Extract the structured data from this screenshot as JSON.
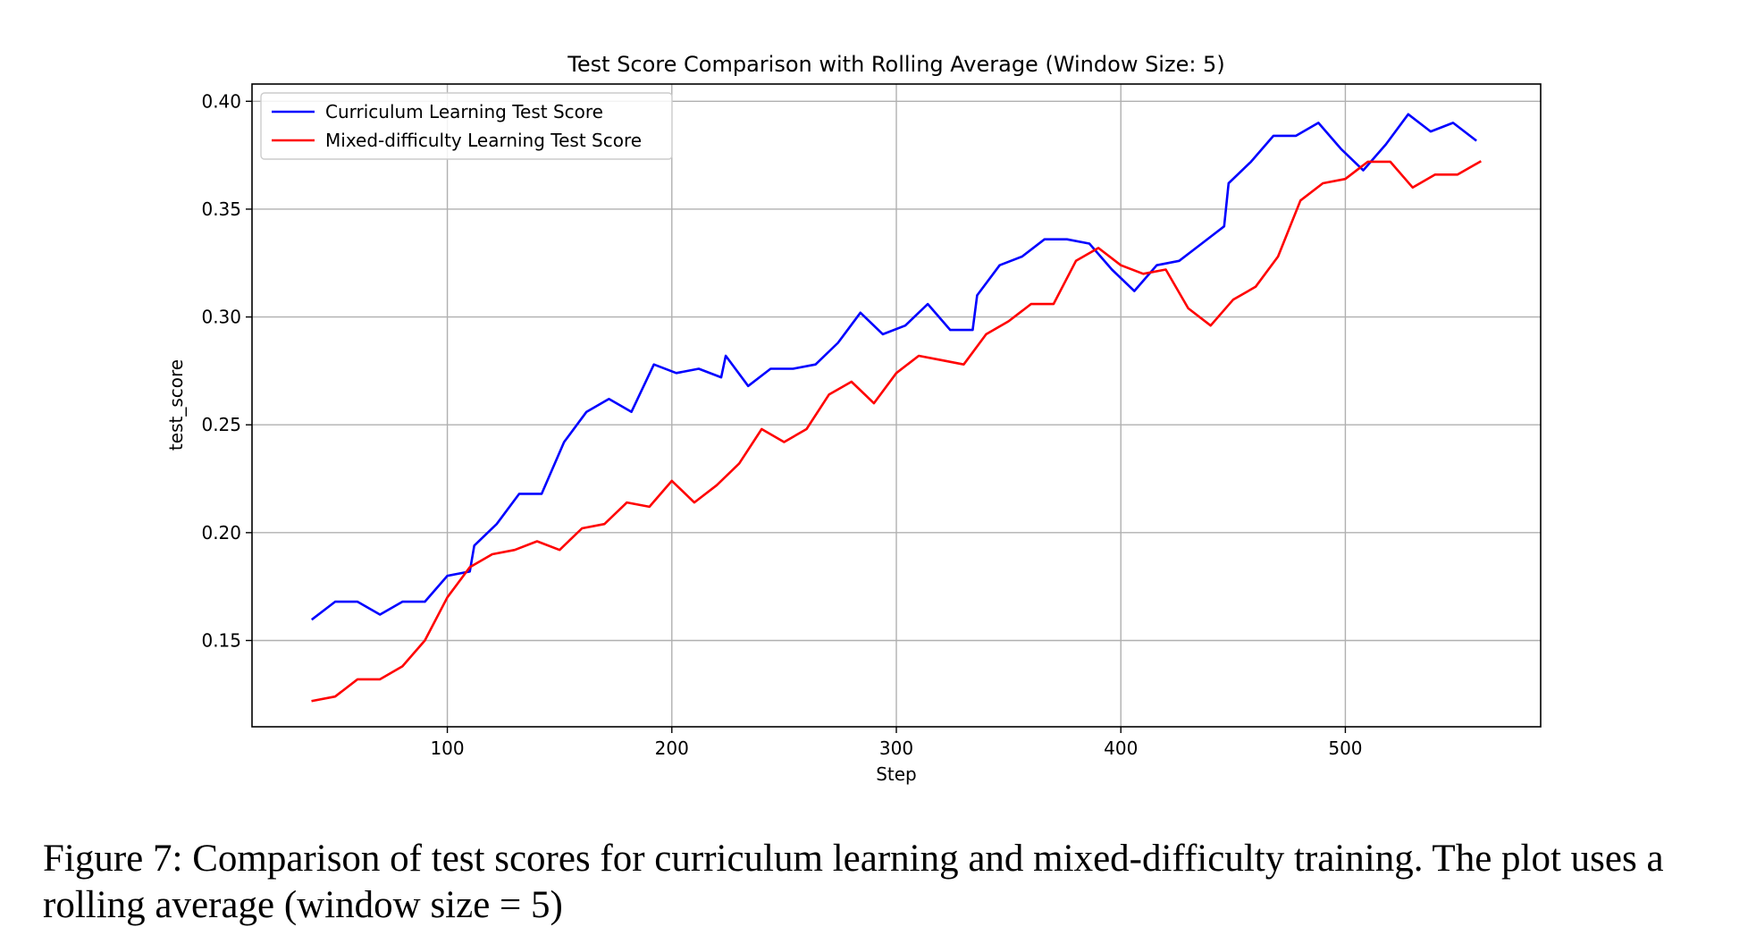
{
  "chart_data": {
    "type": "line",
    "title": "Test Score Comparison with Rolling Average (Window Size: 5)",
    "xlabel": "Step",
    "ylabel": "test_score",
    "xlim": [
      13,
      587
    ],
    "ylim": [
      0.11,
      0.408
    ],
    "x_ticks": [
      100,
      200,
      300,
      400,
      500
    ],
    "y_ticks": [
      0.15,
      0.2,
      0.25,
      0.3,
      0.35,
      0.4
    ],
    "x_tick_labels": [
      "100",
      "200",
      "300",
      "400",
      "500"
    ],
    "y_tick_labels": [
      "0.15",
      "0.20",
      "0.25",
      "0.30",
      "0.35",
      "0.40"
    ],
    "grid": true,
    "legend_position": "top-left",
    "series": [
      {
        "name": "Curriculum Learning Test Score",
        "color": "#0000ff",
        "x": [
          40,
          50,
          60,
          70,
          80,
          90,
          100,
          110,
          112,
          122,
          132,
          142,
          152,
          162,
          172,
          182,
          192,
          202,
          212,
          222,
          224,
          234,
          244,
          254,
          264,
          274,
          284,
          294,
          304,
          314,
          324,
          334,
          336,
          346,
          356,
          366,
          376,
          386,
          396,
          406,
          416,
          426,
          436,
          446,
          448,
          458,
          468,
          478,
          488,
          498,
          508,
          518,
          528,
          538,
          548,
          558
        ],
        "y": [
          0.16,
          0.168,
          0.168,
          0.162,
          0.168,
          0.168,
          0.18,
          0.182,
          0.194,
          0.204,
          0.218,
          0.218,
          0.242,
          0.256,
          0.262,
          0.256,
          0.278,
          0.274,
          0.276,
          0.272,
          0.282,
          0.268,
          0.276,
          0.276,
          0.278,
          0.288,
          0.302,
          0.292,
          0.296,
          0.306,
          0.294,
          0.294,
          0.31,
          0.324,
          0.328,
          0.336,
          0.336,
          0.334,
          0.322,
          0.312,
          0.324,
          0.326,
          0.334,
          0.342,
          0.362,
          0.372,
          0.384,
          0.384,
          0.39,
          0.378,
          0.368,
          0.38,
          0.394,
          0.386,
          0.39,
          0.382
        ]
      },
      {
        "name": "Mixed-difficulty Learning Test Score",
        "color": "#ff0000",
        "x": [
          40,
          50,
          60,
          70,
          80,
          90,
          100,
          110,
          120,
          130,
          140,
          150,
          160,
          170,
          180,
          190,
          200,
          210,
          220,
          230,
          240,
          250,
          260,
          270,
          280,
          290,
          300,
          310,
          320,
          330,
          340,
          350,
          360,
          370,
          380,
          390,
          400,
          410,
          420,
          430,
          440,
          450,
          460,
          470,
          480,
          490,
          500,
          510,
          520,
          530,
          540,
          550,
          560
        ],
        "y": [
          0.122,
          0.124,
          0.132,
          0.132,
          0.138,
          0.15,
          0.17,
          0.184,
          0.19,
          0.192,
          0.196,
          0.192,
          0.202,
          0.204,
          0.214,
          0.212,
          0.224,
          0.214,
          0.222,
          0.232,
          0.248,
          0.242,
          0.248,
          0.264,
          0.27,
          0.26,
          0.274,
          0.282,
          0.28,
          0.278,
          0.292,
          0.298,
          0.306,
          0.306,
          0.326,
          0.332,
          0.324,
          0.32,
          0.322,
          0.304,
          0.296,
          0.308,
          0.314,
          0.328,
          0.354,
          0.362,
          0.364,
          0.372,
          0.372,
          0.36,
          0.366,
          0.366,
          0.372
        ]
      }
    ]
  },
  "caption": "Figure 7: Comparison of test scores for curriculum learning and mixed-difficulty training. The plot uses a rolling average (window size = 5)"
}
